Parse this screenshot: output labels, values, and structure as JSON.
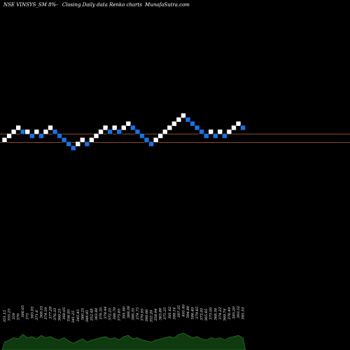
{
  "title": {
    "ticker": "NSE VINSYS_SM 8%-",
    "description": "Closing Daily data  Renko  charts",
    "site": "MunafaSutra.com"
  },
  "colors": {
    "background": "#000000",
    "up_brick": "#ffffff",
    "down_brick": "#1e6fe0",
    "reference_line": "#c06020",
    "volume_fill": "#0f3a0f",
    "volume_edge": "#2f8a2f",
    "text": "#ffffff"
  },
  "chart_data": {
    "type": "renko",
    "title": "NSE VINSYS_SM 8%-",
    "reference_lines": [
      359.0,
      342.0
    ],
    "bricks": [
      {
        "level": 2,
        "dir": "up"
      },
      {
        "level": 3,
        "dir": "up"
      },
      {
        "level": 4,
        "dir": "up"
      },
      {
        "level": 5,
        "dir": "up"
      },
      {
        "level": 4,
        "dir": "down"
      },
      {
        "level": 4,
        "dir": "up"
      },
      {
        "level": 3,
        "dir": "down"
      },
      {
        "level": 4,
        "dir": "up"
      },
      {
        "level": 3,
        "dir": "down"
      },
      {
        "level": 4,
        "dir": "up"
      },
      {
        "level": 5,
        "dir": "up"
      },
      {
        "level": 4,
        "dir": "down"
      },
      {
        "level": 3,
        "dir": "down"
      },
      {
        "level": 2,
        "dir": "down"
      },
      {
        "level": 1,
        "dir": "down"
      },
      {
        "level": 0,
        "dir": "down"
      },
      {
        "level": 1,
        "dir": "up"
      },
      {
        "level": 2,
        "dir": "up"
      },
      {
        "level": 1,
        "dir": "down"
      },
      {
        "level": 2,
        "dir": "up"
      },
      {
        "level": 3,
        "dir": "up"
      },
      {
        "level": 4,
        "dir": "up"
      },
      {
        "level": 5,
        "dir": "up"
      },
      {
        "level": 4,
        "dir": "down"
      },
      {
        "level": 5,
        "dir": "up"
      },
      {
        "level": 4,
        "dir": "down"
      },
      {
        "level": 5,
        "dir": "up"
      },
      {
        "level": 6,
        "dir": "up"
      },
      {
        "level": 5,
        "dir": "down"
      },
      {
        "level": 4,
        "dir": "down"
      },
      {
        "level": 3,
        "dir": "down"
      },
      {
        "level": 2,
        "dir": "down"
      },
      {
        "level": 1,
        "dir": "down"
      },
      {
        "level": 2,
        "dir": "up"
      },
      {
        "level": 3,
        "dir": "up"
      },
      {
        "level": 4,
        "dir": "up"
      },
      {
        "level": 5,
        "dir": "up"
      },
      {
        "level": 6,
        "dir": "up"
      },
      {
        "level": 7,
        "dir": "up"
      },
      {
        "level": 8,
        "dir": "up"
      },
      {
        "level": 7,
        "dir": "down"
      },
      {
        "level": 6,
        "dir": "down"
      },
      {
        "level": 5,
        "dir": "down"
      },
      {
        "level": 4,
        "dir": "down"
      },
      {
        "level": 3,
        "dir": "down"
      },
      {
        "level": 4,
        "dir": "up"
      },
      {
        "level": 3,
        "dir": "down"
      },
      {
        "level": 4,
        "dir": "up"
      },
      {
        "level": 3,
        "dir": "down"
      },
      {
        "level": 4,
        "dir": "up"
      },
      {
        "level": 5,
        "dir": "up"
      },
      {
        "level": 6,
        "dir": "up"
      },
      {
        "level": 5,
        "dir": "down"
      }
    ],
    "volume": [
      0.35,
      0.45,
      0.55,
      0.5,
      0.7,
      0.55,
      0.6,
      0.5,
      0.65,
      0.55,
      0.6,
      0.5,
      0.45,
      0.55,
      0.4,
      0.3,
      0.4,
      0.5,
      0.35,
      0.45,
      0.5,
      0.55,
      0.6,
      0.5,
      0.55,
      0.45,
      0.6,
      0.65,
      0.5,
      0.55,
      0.45,
      0.4,
      0.35,
      0.45,
      0.5,
      0.55,
      0.6,
      0.55,
      0.7,
      0.75,
      0.65,
      0.55,
      0.6,
      0.5,
      0.45,
      0.55,
      0.5,
      0.55,
      0.45,
      0.55,
      0.6,
      0.65,
      0.55
    ],
    "volume_labels": [
      "351.15",
      "355.25",
      "359",
      "370",
      "366.05",
      "371",
      "365.95",
      "371.6",
      "368.55",
      "374.59",
      "377.28",
      "376.33",
      "369.25",
      "360.05",
      "356.95",
      "341.25",
      "345.45",
      "360.25",
      "348.95",
      "352.48",
      "363.60",
      "370.35",
      "378.44",
      "372.25",
      "380.70",
      "373.85",
      "381.60",
      "388.30",
      "380.35",
      "374.75",
      "370.95",
      "360.66",
      "352.20",
      "358.94",
      "363.80",
      "375.25",
      "381.62",
      "388.14",
      "397.35",
      "405.40",
      "394.80",
      "386.40",
      "379.85",
      "373.05",
      "365.85",
      "375.05",
      "368.50",
      "374.22",
      "369.74",
      "376.40",
      "385.20",
      "393.52",
      "385.10"
    ]
  }
}
